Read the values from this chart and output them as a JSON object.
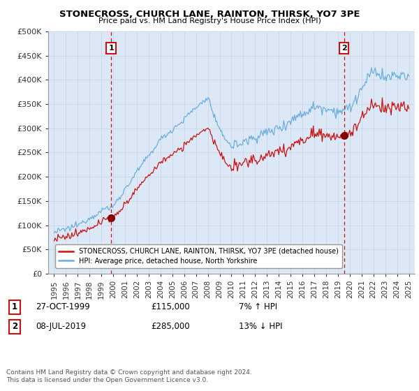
{
  "title": "STONECROSS, CHURCH LANE, RAINTON, THIRSK, YO7 3PE",
  "subtitle": "Price paid vs. HM Land Registry's House Price Index (HPI)",
  "ylabel_ticks": [
    "£0",
    "£50K",
    "£100K",
    "£150K",
    "£200K",
    "£250K",
    "£300K",
    "£350K",
    "£400K",
    "£450K",
    "£500K"
  ],
  "ytick_values": [
    0,
    50000,
    100000,
    150000,
    200000,
    250000,
    300000,
    350000,
    400000,
    450000,
    500000
  ],
  "xlim_start": 1994.5,
  "xlim_end": 2025.5,
  "ylim": [
    0,
    500000
  ],
  "transaction1": {
    "date": "27-OCT-1999",
    "x": 1999.82,
    "price": 115000,
    "label": "1",
    "note": "7% ↑ HPI"
  },
  "transaction2": {
    "date": "08-JUL-2019",
    "x": 2019.52,
    "price": 285000,
    "label": "2",
    "note": "13% ↓ HPI"
  },
  "hpi_color": "#6aaee0",
  "price_color": "#cc1111",
  "vline_color": "#cc1111",
  "marker_color": "#880000",
  "grid_color": "#c8d8e8",
  "bg_color": "#dce8f5",
  "outer_bg": "#ffffff",
  "legend_label_red": "STONECROSS, CHURCH LANE, RAINTON, THIRSK, YO7 3PE (detached house)",
  "legend_label_blue": "HPI: Average price, detached house, North Yorkshire",
  "footnote": "Contains HM Land Registry data © Crown copyright and database right 2024.\nThis data is licensed under the Open Government Licence v3.0.",
  "xticks": [
    1995,
    1996,
    1997,
    1998,
    1999,
    2000,
    2001,
    2002,
    2003,
    2004,
    2005,
    2006,
    2007,
    2008,
    2009,
    2010,
    2011,
    2012,
    2013,
    2014,
    2015,
    2016,
    2017,
    2018,
    2019,
    2020,
    2021,
    2022,
    2023,
    2024,
    2025
  ],
  "table_row1": {
    "num": "1",
    "date": "27-OCT-1999",
    "price": "£115,000",
    "note": "7% ↑ HPI"
  },
  "table_row2": {
    "num": "2",
    "date": "08-JUL-2019",
    "price": "£285,000",
    "note": "13% ↓ HPI"
  }
}
